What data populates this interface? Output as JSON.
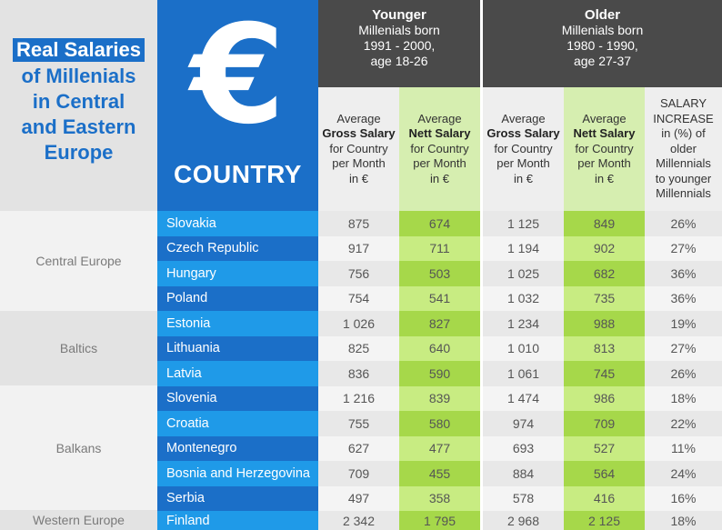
{
  "title": {
    "lines": [
      "Real Salaries",
      "of Millenials",
      "in Central",
      "and Eastern",
      "Europe"
    ]
  },
  "country_header": {
    "symbol": "€",
    "label": "COUNTRY"
  },
  "groups": {
    "younger": {
      "name": "Younger",
      "line1": "Millenials born",
      "line2": "1991 - 2000,",
      "line3": "age 18-26"
    },
    "older": {
      "name": "Older",
      "line1": "Millenials born",
      "line2": "1980 - 1990,",
      "line3": "age 27-37"
    }
  },
  "columns": {
    "gross": {
      "pre": "Average",
      "bold": "Gross Salary",
      "l3": "for Country",
      "l4": "per Month",
      "l5": "in €"
    },
    "nett": {
      "pre": "Average",
      "bold": "Nett Salary",
      "l3": "for Country",
      "l4": "per Month",
      "l5": "in €"
    },
    "increase": {
      "l1": "SALARY",
      "l2": "INCREASE",
      "l3": "in (%) of",
      "l4": "older",
      "l5": "Millennials",
      "l6": "to younger",
      "l7": "Millennials"
    }
  },
  "regions": [
    "Central Europe",
    "Baltics",
    "Balkans",
    "Western Europe"
  ],
  "rows": [
    {
      "country": "Slovakia",
      "y_gross": "875",
      "y_nett": "674",
      "o_gross": "1 125",
      "o_nett": "849",
      "increase": "26%"
    },
    {
      "country": "Czech Republic",
      "y_gross": "917",
      "y_nett": "711",
      "o_gross": "1 194",
      "o_nett": "902",
      "increase": "27%"
    },
    {
      "country": "Hungary",
      "y_gross": "756",
      "y_nett": "503",
      "o_gross": "1 025",
      "o_nett": "682",
      "increase": "36%"
    },
    {
      "country": "Poland",
      "y_gross": "754",
      "y_nett": "541",
      "o_gross": "1 032",
      "o_nett": "735",
      "increase": "36%"
    },
    {
      "country": "Estonia",
      "y_gross": "1 026",
      "y_nett": "827",
      "o_gross": "1 234",
      "o_nett": "988",
      "increase": "19%"
    },
    {
      "country": "Lithuania",
      "y_gross": "825",
      "y_nett": "640",
      "o_gross": "1 010",
      "o_nett": "813",
      "increase": "27%"
    },
    {
      "country": "Latvia",
      "y_gross": "836",
      "y_nett": "590",
      "o_gross": "1 061",
      "o_nett": "745",
      "increase": "26%"
    },
    {
      "country": "Slovenia",
      "y_gross": "1 216",
      "y_nett": "839",
      "o_gross": "1 474",
      "o_nett": "986",
      "increase": "18%"
    },
    {
      "country": "Croatia",
      "y_gross": "755",
      "y_nett": "580",
      "o_gross": "974",
      "o_nett": "709",
      "increase": "22%"
    },
    {
      "country": "Montenegro",
      "y_gross": "627",
      "y_nett": "477",
      "o_gross": "693",
      "o_nett": "527",
      "increase": "11%"
    },
    {
      "country": "Bosnia and Herzegovina",
      "y_gross": "709",
      "y_nett": "455",
      "o_gross": "884",
      "o_nett": "564",
      "increase": "24%"
    },
    {
      "country": "Serbia",
      "y_gross": "497",
      "y_nett": "358",
      "o_gross": "578",
      "o_nett": "416",
      "increase": "16%"
    },
    {
      "country": "Finland",
      "y_gross": "2 342",
      "y_nett": "1 795",
      "o_gross": "2 968",
      "o_nett": "2 125",
      "increase": "18%"
    }
  ]
}
